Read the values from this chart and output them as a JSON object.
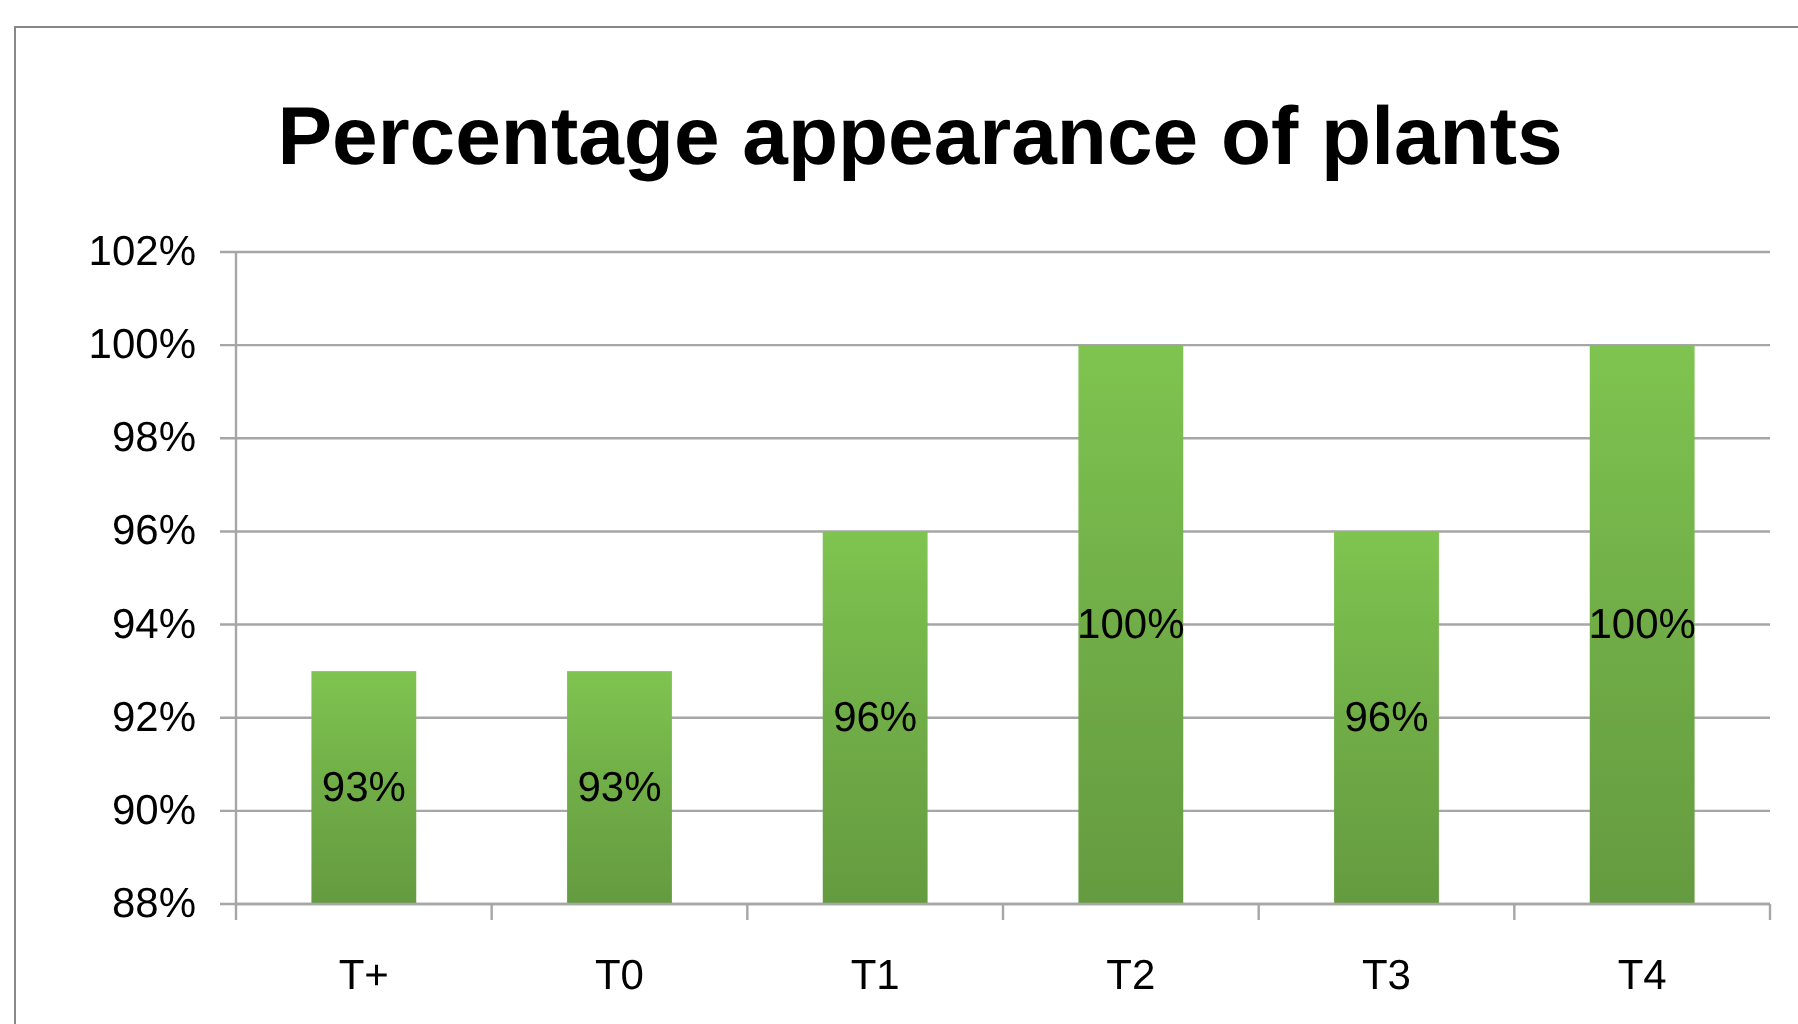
{
  "chart_data": {
    "type": "bar",
    "title": "Percentage appearance of plants",
    "categories": [
      "T+",
      "T0",
      "T1",
      "T2",
      "T3",
      "T4"
    ],
    "values": [
      93,
      93,
      96,
      100,
      96,
      100
    ],
    "value_labels": [
      "93%",
      "93%",
      "96%",
      "100%",
      "96%",
      "100%"
    ],
    "color": "#70ad47",
    "ylim": [
      88,
      102
    ],
    "yticks": [
      {
        "value": 88,
        "label": "88%"
      },
      {
        "value": 90,
        "label": "90%"
      },
      {
        "value": 92,
        "label": "92%"
      },
      {
        "value": 94,
        "label": "94%"
      },
      {
        "value": 96,
        "label": "96%"
      },
      {
        "value": 98,
        "label": "98%"
      },
      {
        "value": 100,
        "label": "100%"
      },
      {
        "value": 102,
        "label": "102%"
      }
    ],
    "grid": "y"
  }
}
